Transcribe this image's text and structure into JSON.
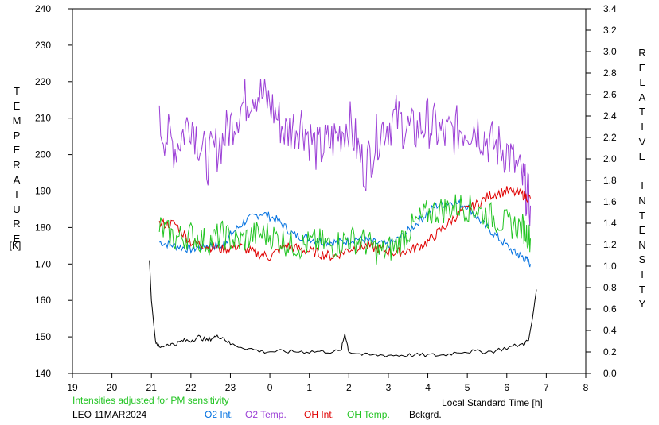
{
  "chart_data": {
    "type": "line",
    "station": "LEO",
    "date_label": "LEO 11MAR2024",
    "subtitle": "Intensities adjusted for PM sensitivity",
    "xlabel": "Local Standard Time [h]",
    "ylabel_left": "TEMPERATURE",
    "ylabel_left_unit": "[K]",
    "ylabel_right": "RELATIVE INTENSITY",
    "x_ticks": [
      "19",
      "20",
      "21",
      "22",
      "23",
      "0",
      "1",
      "2",
      "3",
      "4",
      "5",
      "6",
      "7",
      "8"
    ],
    "y_left_ticks": [
      "140",
      "150",
      "160",
      "170",
      "180",
      "190",
      "200",
      "210",
      "220",
      "230",
      "240"
    ],
    "y_right_ticks": [
      "0.0",
      "0.2",
      "0.4",
      "0.6",
      "0.8",
      "1.0",
      "1.2",
      "1.4",
      "1.6",
      "1.8",
      "2.0",
      "2.2",
      "2.4",
      "2.6",
      "2.8",
      "3.0",
      "3.2",
      "3.4"
    ],
    "xlim": [
      19,
      32
    ],
    "ylim_left": [
      140,
      240
    ],
    "ylim_right": [
      0,
      3.4
    ],
    "grid": false,
    "legend_placement": "bottom",
    "series": [
      {
        "name": "O2 Int.",
        "color": "#0070e0",
        "axis": "left",
        "x": [
          21.2,
          21.6,
          22.0,
          22.4,
          22.8,
          23.0,
          23.4,
          23.8,
          24.2,
          24.6,
          25.0,
          25.4,
          25.8,
          26.2,
          26.6,
          27.0,
          27.4,
          27.8,
          28.2,
          28.6,
          29.0,
          29.4,
          29.8,
          30.2,
          30.4,
          30.6
        ],
        "y": [
          176,
          175,
          174,
          175,
          175,
          178,
          182,
          184,
          182,
          178,
          177,
          176,
          176,
          177,
          176,
          175,
          178,
          182,
          186,
          187,
          186,
          181,
          177,
          173,
          172,
          170
        ]
      },
      {
        "name": "O2 Temp.",
        "color": "#9b3fd6",
        "axis": "left",
        "x": [
          21.2,
          21.6,
          22.0,
          22.4,
          22.8,
          23.2,
          23.6,
          24.0,
          24.4,
          24.8,
          25.2,
          25.6,
          26.0,
          26.4,
          26.8,
          27.2,
          27.6,
          28.0,
          28.4,
          28.8,
          29.2,
          29.6,
          30.0,
          30.4,
          30.6
        ],
        "y": [
          208,
          202,
          210,
          198,
          204,
          212,
          218,
          214,
          206,
          209,
          201,
          204,
          209,
          196,
          207,
          210,
          206,
          209,
          205,
          207,
          208,
          203,
          201,
          193,
          186
        ]
      },
      {
        "name": "OH Int.",
        "color": "#e00000",
        "axis": "left",
        "x": [
          21.2,
          21.6,
          22.0,
          22.4,
          22.8,
          23.2,
          23.6,
          24.0,
          24.4,
          24.8,
          25.2,
          25.6,
          26.0,
          26.4,
          26.8,
          27.2,
          27.6,
          28.0,
          28.4,
          28.8,
          29.2,
          29.6,
          30.0,
          30.4,
          30.6
        ],
        "y": [
          181,
          181,
          176,
          175,
          174,
          175,
          173,
          172,
          175,
          174,
          173,
          172,
          174,
          175,
          174,
          173,
          174,
          176,
          180,
          184,
          186,
          189,
          190,
          189,
          188
        ]
      },
      {
        "name": "OH Temp.",
        "color": "#22c422",
        "axis": "left",
        "x": [
          21.2,
          21.6,
          22.0,
          22.4,
          22.8,
          23.2,
          23.6,
          24.0,
          24.4,
          24.8,
          25.2,
          25.6,
          26.0,
          26.4,
          26.8,
          27.2,
          27.6,
          28.0,
          28.4,
          28.8,
          29.2,
          29.6,
          30.0,
          30.4,
          30.6
        ],
        "y": [
          180,
          177,
          178,
          176,
          178,
          176,
          178,
          178,
          176,
          175,
          176,
          175,
          177,
          176,
          173,
          175,
          180,
          184,
          185,
          186,
          185,
          183,
          181,
          180,
          177
        ]
      },
      {
        "name": "Bckgrd.",
        "color": "#000000",
        "axis": "left",
        "x": [
          20.95,
          21.0,
          21.1,
          21.2,
          21.4,
          21.6,
          21.8,
          22.0,
          22.2,
          22.4,
          22.6,
          22.8,
          23.0,
          23.4,
          23.8,
          24.2,
          24.6,
          25.0,
          25.4,
          25.8,
          25.9,
          26.0,
          26.4,
          26.8,
          27.2,
          27.6,
          28.0,
          28.4,
          28.8,
          29.2,
          29.6,
          30.0,
          30.4,
          30.55,
          30.65,
          30.75
        ],
        "y": [
          171,
          160,
          149,
          147,
          148,
          148,
          149,
          149,
          150,
          149,
          150,
          150,
          148,
          147,
          146,
          146,
          146,
          146,
          146,
          146,
          151,
          146,
          145,
          145,
          145,
          145,
          145,
          145,
          146,
          146,
          146,
          147,
          148,
          149,
          155,
          163
        ]
      }
    ]
  }
}
